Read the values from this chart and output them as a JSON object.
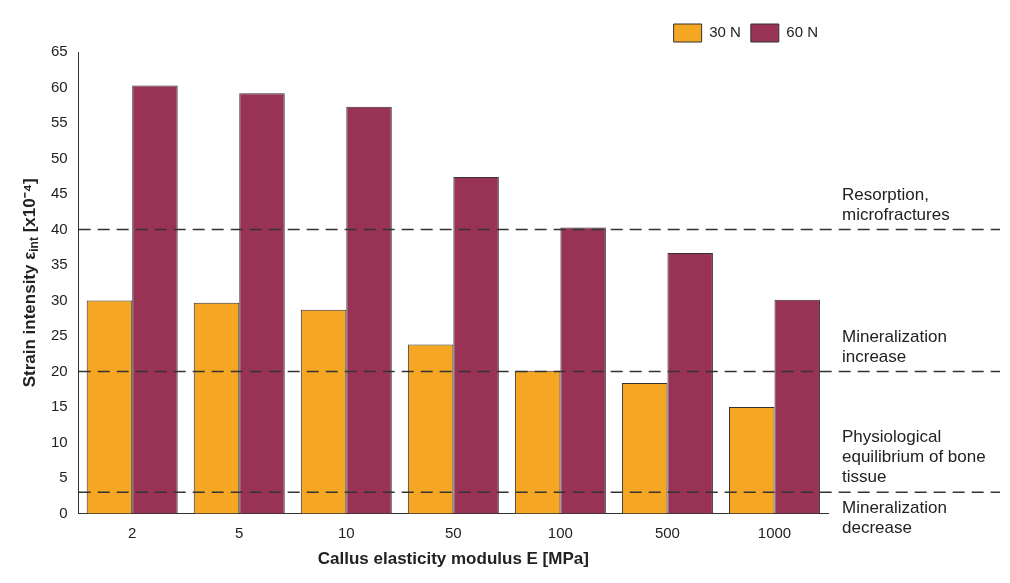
{
  "chart_data": {
    "type": "bar",
    "xlabel": "Callus elasticity modulus E [MPa]",
    "ylabel": "Strain intensity ε$_{int}$ [x10⁻⁴]",
    "categories": [
      "2",
      "5",
      "10",
      "50",
      "100",
      "500",
      "1000"
    ],
    "series": [
      {
        "name": "30 N",
        "color": "#f5a623",
        "values": [
          30.0,
          29.7,
          28.7,
          23.8,
          20.1,
          18.4,
          15.0
        ]
      },
      {
        "name": "60 N",
        "color": "#993355",
        "values": [
          60.3,
          59.2,
          57.3,
          47.4,
          40.3,
          36.7,
          30.1
        ]
      }
    ],
    "ylim": [
      0,
      65
    ],
    "yticks": [
      0,
      5,
      10,
      15,
      20,
      25,
      30,
      35,
      40,
      45,
      50,
      55,
      60,
      65
    ],
    "grid": false,
    "legend": "top right",
    "ref_lines": [
      {
        "axis": "y",
        "value": 40,
        "line_style": "dashed",
        "color": "#333333"
      },
      {
        "axis": "y",
        "value": 20,
        "line_style": "dashed",
        "color": "#333333"
      },
      {
        "axis": "y",
        "value": 3,
        "line_style": "dashed",
        "color": "#333333"
      }
    ],
    "annotations": [
      "Resorption, microfractures",
      "Mineralization increase",
      "Physiological equilibrium of bone tissue",
      "Mineralization decrease"
    ]
  }
}
